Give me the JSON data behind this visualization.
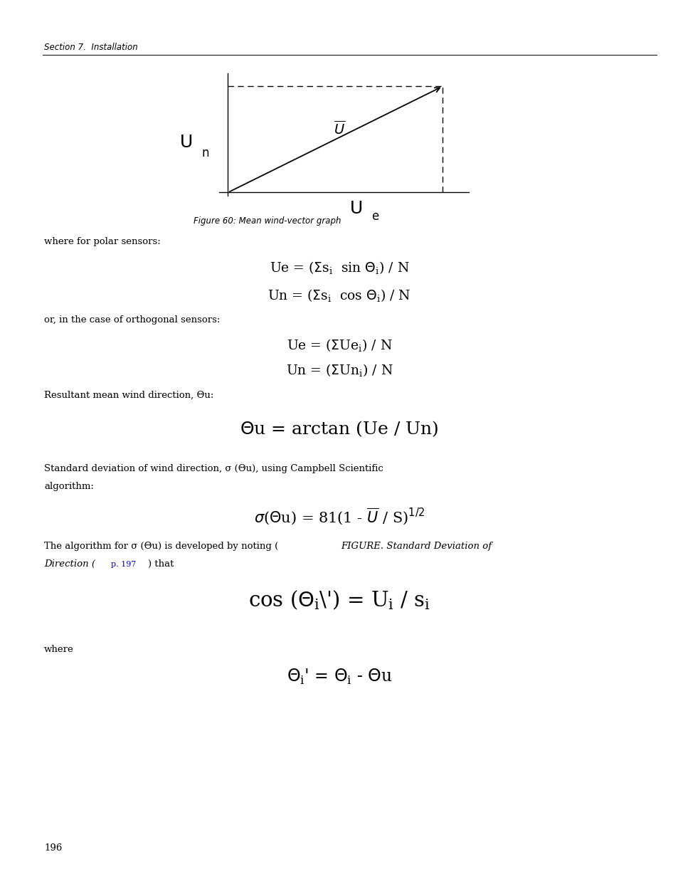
{
  "background_color": "#ffffff",
  "page_width": 9.54,
  "page_height": 12.35,
  "header_text": "Section 7.  Installation",
  "figure_caption": "Figure 60: Mean wind-vector graph",
  "footer_text": "196",
  "text_color": "#000000",
  "header_color": "#000000",
  "link_color": "#0000cd"
}
